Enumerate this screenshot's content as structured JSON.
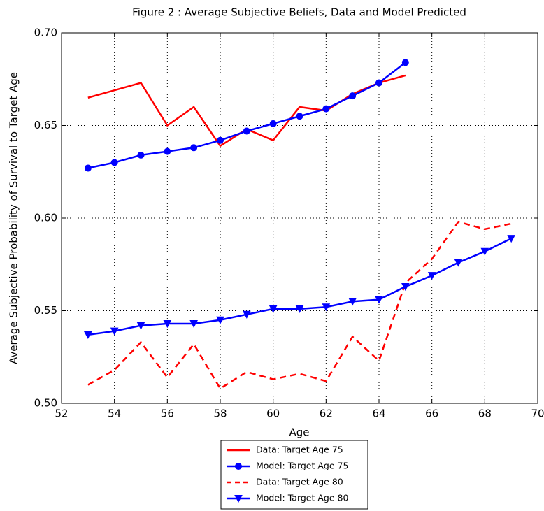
{
  "chart_data": {
    "type": "line",
    "title": "Figure 2 : Average Subjective Beliefs, Data and Model Predicted",
    "xlabel": "Age",
    "ylabel": "Average Subjective Probability of Survival to Target Age",
    "x": [
      53,
      54,
      55,
      56,
      57,
      58,
      59,
      60,
      61,
      62,
      63,
      64,
      65,
      66,
      67,
      68,
      69
    ],
    "series": [
      {
        "name": "Data: Target Age 75",
        "color": "#ff0000",
        "linestyle": "solid",
        "marker": "none",
        "values": [
          0.665,
          0.669,
          0.673,
          0.65,
          0.66,
          0.639,
          0.648,
          0.642,
          0.66,
          0.658,
          0.667,
          0.673,
          0.677,
          null,
          null,
          null,
          null
        ]
      },
      {
        "name": "Model: Target Age 75",
        "color": "#0000ff",
        "linestyle": "solid",
        "marker": "circle",
        "values": [
          0.627,
          0.63,
          0.634,
          0.636,
          0.638,
          0.642,
          0.647,
          0.651,
          0.655,
          0.659,
          0.666,
          0.673,
          0.684,
          null,
          null,
          null,
          null
        ]
      },
      {
        "name": "Data: Target Age 80",
        "color": "#ff0000",
        "linestyle": "dashed",
        "marker": "none",
        "values": [
          0.51,
          0.518,
          0.533,
          0.514,
          0.532,
          0.508,
          0.517,
          0.513,
          0.516,
          0.512,
          0.536,
          0.523,
          0.565,
          0.578,
          0.598,
          0.594,
          0.597
        ]
      },
      {
        "name": "Model: Target Age 80",
        "color": "#0000ff",
        "linestyle": "solid",
        "marker": "triangle-down",
        "values": [
          0.537,
          0.539,
          0.542,
          0.543,
          0.543,
          0.545,
          0.548,
          0.551,
          0.551,
          0.552,
          0.555,
          0.556,
          0.563,
          0.569,
          0.576,
          0.582,
          0.589
        ]
      }
    ],
    "xlim": [
      52,
      70
    ],
    "xticks": [
      52,
      54,
      56,
      58,
      60,
      62,
      64,
      66,
      68,
      70
    ],
    "ylim": [
      0.5,
      0.7
    ],
    "yticks": [
      {
        "value": 0.5,
        "label": "0.50"
      },
      0.55,
      {
        "value": 0.6,
        "label": "0.60"
      },
      0.65,
      {
        "value": 0.7,
        "label": "0.70"
      }
    ],
    "grid": true,
    "legend": "below"
  }
}
